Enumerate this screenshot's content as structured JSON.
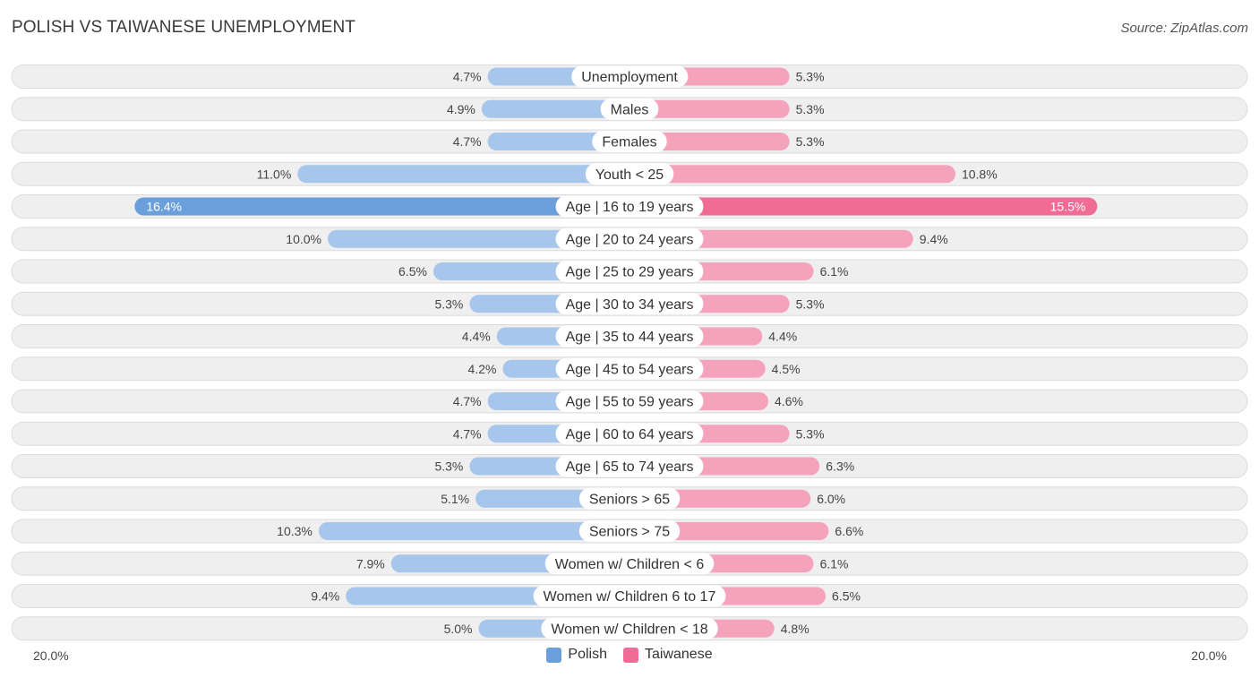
{
  "header": {
    "title": "POLISH VS TAIWANESE UNEMPLOYMENT",
    "source": "Source: ZipAtlas.com"
  },
  "colors": {
    "polish": "#a7c6eb",
    "polish_highlight": "#6a9fdc",
    "taiwanese": "#f5a3bd",
    "taiwanese_highlight": "#f06b96",
    "legend_polish": "#6a9fdc",
    "legend_taiwanese": "#f06b96",
    "row_bg": "#efefef",
    "row_border": "#dcdcdc"
  },
  "axis": {
    "left_label": "20.0%",
    "right_label": "20.0%"
  },
  "legend": {
    "polish": "Polish",
    "taiwanese": "Taiwanese"
  },
  "chart_data": {
    "type": "bar",
    "orientation": "horizontal-diverging",
    "title": "POLISH VS TAIWANESE UNEMPLOYMENT",
    "xlim": [
      -20,
      20
    ],
    "unit": "%",
    "categories": [
      "Unemployment",
      "Males",
      "Females",
      "Youth < 25",
      "Age | 16 to 19 years",
      "Age | 20 to 24 years",
      "Age | 25 to 29 years",
      "Age | 30 to 34 years",
      "Age | 35 to 44 years",
      "Age | 45 to 54 years",
      "Age | 55 to 59 years",
      "Age | 60 to 64 years",
      "Age | 65 to 74 years",
      "Seniors > 65",
      "Seniors > 75",
      "Women w/ Children < 6",
      "Women w/ Children 6 to 17",
      "Women w/ Children < 18"
    ],
    "series": [
      {
        "name": "Polish",
        "side": "left",
        "values": [
          4.7,
          4.9,
          4.7,
          11.0,
          16.4,
          10.0,
          6.5,
          5.3,
          4.4,
          4.2,
          4.7,
          4.7,
          5.3,
          5.1,
          10.3,
          7.9,
          9.4,
          5.0
        ],
        "labels": [
          "4.7%",
          "4.9%",
          "4.7%",
          "11.0%",
          "16.4%",
          "10.0%",
          "6.5%",
          "5.3%",
          "4.4%",
          "4.2%",
          "4.7%",
          "4.7%",
          "5.3%",
          "5.1%",
          "10.3%",
          "7.9%",
          "9.4%",
          "5.0%"
        ]
      },
      {
        "name": "Taiwanese",
        "side": "right",
        "values": [
          5.3,
          5.3,
          5.3,
          10.8,
          15.5,
          9.4,
          6.1,
          5.3,
          4.4,
          4.5,
          4.6,
          5.3,
          6.3,
          6.0,
          6.6,
          6.1,
          6.5,
          4.8
        ],
        "labels": [
          "5.3%",
          "5.3%",
          "5.3%",
          "10.8%",
          "15.5%",
          "9.4%",
          "6.1%",
          "5.3%",
          "4.4%",
          "4.5%",
          "4.6%",
          "5.3%",
          "6.3%",
          "6.0%",
          "6.6%",
          "6.1%",
          "6.5%",
          "4.8%"
        ]
      }
    ],
    "highlight_index": 4,
    "legend_position": "bottom-center"
  }
}
